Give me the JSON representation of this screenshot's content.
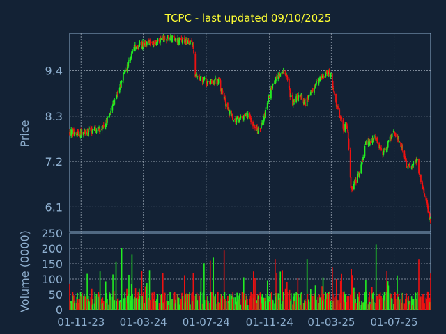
{
  "title": "TCPC - last updated 09/10/2025",
  "colors": {
    "background": "#132235",
    "title": "#ffff33",
    "axis_text": "#8fb0d0",
    "frame": "#8fb0d0",
    "grid": "#9aa6b4",
    "up": "#22ee22",
    "down": "#ee1111"
  },
  "chart_data": [
    {
      "type": "candlestick",
      "ylabel": "Price",
      "yticks": [
        9.4,
        8.3,
        7.2,
        6.1
      ],
      "ylim": [
        5.5,
        10.3
      ],
      "grid": true,
      "anchors": [
        [
          "2023-11-01",
          7.9
        ],
        [
          "2023-12-15",
          8.0
        ],
        [
          "2024-01-15",
          9.0
        ],
        [
          "2024-02-15",
          10.0
        ],
        [
          "2024-03-20",
          10.1
        ],
        [
          "2024-04-15",
          10.2
        ],
        [
          "2024-06-05",
          10.05
        ],
        [
          "2024-06-10",
          9.3
        ],
        [
          "2024-07-05",
          9.1
        ],
        [
          "2024-07-25",
          9.15
        ],
        [
          "2024-08-10",
          8.5
        ],
        [
          "2024-08-25",
          8.2
        ],
        [
          "2024-09-20",
          8.3
        ],
        [
          "2024-10-12",
          7.9
        ],
        [
          "2024-10-22",
          8.3
        ],
        [
          "2024-11-05",
          9.0
        ],
        [
          "2024-11-25",
          9.4
        ],
        [
          "2024-12-05",
          9.2
        ],
        [
          "2024-12-15",
          8.6
        ],
        [
          "2024-12-31",
          8.8
        ],
        [
          "2025-01-10",
          8.6
        ],
        [
          "2025-01-31",
          9.1
        ],
        [
          "2025-02-20",
          9.35
        ],
        [
          "2025-03-01",
          9.3
        ],
        [
          "2025-03-10",
          8.6
        ],
        [
          "2025-03-25",
          8.0
        ],
        [
          "2025-04-01",
          8.1
        ],
        [
          "2025-04-05",
          7.4
        ],
        [
          "2025-04-08",
          6.5
        ],
        [
          "2025-04-25",
          6.9
        ],
        [
          "2025-05-05",
          7.6
        ],
        [
          "2025-05-25",
          7.8
        ],
        [
          "2025-06-10",
          7.4
        ],
        [
          "2025-06-30",
          7.9
        ],
        [
          "2025-07-15",
          7.6
        ],
        [
          "2025-07-25",
          7.1
        ],
        [
          "2025-08-05",
          7.1
        ],
        [
          "2025-08-15",
          7.2
        ],
        [
          "2025-08-21",
          6.8
        ],
        [
          "2025-08-31",
          6.3
        ],
        [
          "2025-09-10",
          5.7
        ]
      ]
    },
    {
      "type": "bar",
      "ylabel": "Volume (0000)",
      "yticks": [
        250,
        200,
        150,
        100,
        50,
        0
      ],
      "ylim": [
        0,
        250
      ],
      "x_start": "2023-10-10",
      "x_end": "2025-09-10",
      "xticks": [
        "01-11-23",
        "01-03-24",
        "01-07-24",
        "01-11-24",
        "01-03-25",
        "01-07-25"
      ],
      "grid": true
    }
  ]
}
